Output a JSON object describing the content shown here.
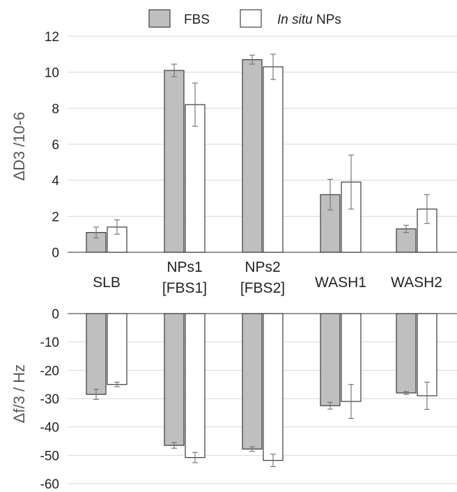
{
  "legend": {
    "entries": [
      {
        "name": "FBS",
        "color": "#bfbfbf"
      },
      {
        "name_prefix": "In situ",
        "name_suffix": " NPs",
        "color": "#ffffff"
      }
    ],
    "placement": "top-center"
  },
  "categories": [
    "SLB",
    [
      "NPs1",
      "[FBS1]"
    ],
    [
      "NPs2",
      "[FBS2]"
    ],
    "WASH1",
    "WASH2"
  ],
  "chart_data": [
    {
      "type": "bar",
      "ylabel": "ΔD3 /10-6",
      "ylim": [
        0,
        12
      ],
      "yticks": [
        0,
        2,
        4,
        6,
        8,
        10,
        12
      ],
      "grid": true,
      "series": [
        {
          "name": "FBS",
          "values": [
            1.1,
            10.1,
            10.7,
            3.2,
            1.3
          ],
          "errors": [
            0.3,
            0.35,
            0.25,
            0.85,
            0.2
          ],
          "color": "#bfbfbf"
        },
        {
          "name": "In situ NPs",
          "values": [
            1.4,
            8.2,
            10.3,
            3.9,
            2.4
          ],
          "errors": [
            0.4,
            1.2,
            0.7,
            1.5,
            0.8
          ],
          "color": "#ffffff"
        }
      ]
    },
    {
      "type": "bar",
      "ylabel": "Δf/3  / Hz",
      "ylim": [
        -60,
        0
      ],
      "yticks": [
        0,
        -10,
        -20,
        -30,
        -40,
        -50,
        -60
      ],
      "grid": true,
      "series": [
        {
          "name": "FBS",
          "values": [
            -28.5,
            -46.5,
            -47.8,
            -32.5,
            -28.0
          ],
          "errors": [
            1.8,
            1.0,
            0.8,
            1.2,
            0.5
          ],
          "color": "#bfbfbf"
        },
        {
          "name": "In situ NPs",
          "values": [
            -25.0,
            -50.8,
            -51.8,
            -31.0,
            -29.0
          ],
          "errors": [
            0.8,
            1.8,
            2.2,
            6.0,
            4.8
          ],
          "color": "#ffffff"
        }
      ]
    }
  ]
}
